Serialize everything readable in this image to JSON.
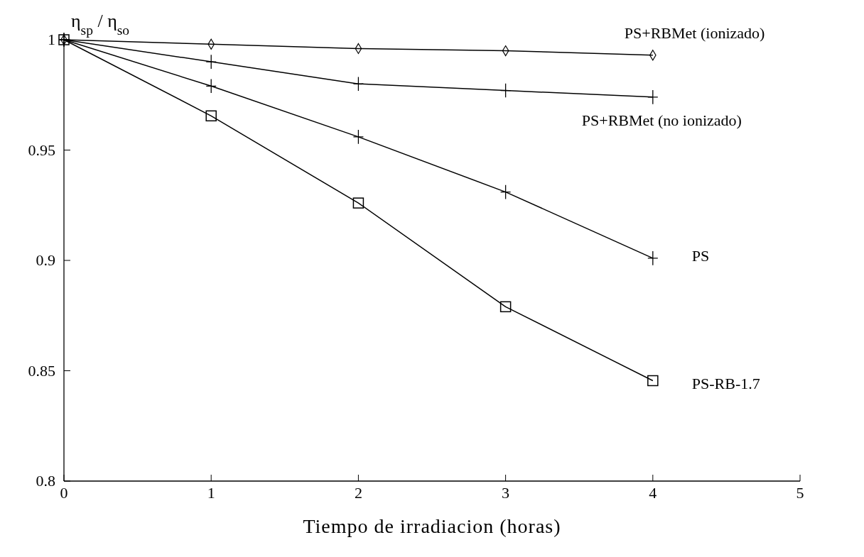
{
  "chart_data": {
    "type": "line",
    "xlabel": "Tiempo de irradiacion (horas)",
    "ylabel": "η$_{sp}$ / η$_{so}$",
    "x": [
      0,
      1,
      2,
      3,
      4
    ],
    "series": [
      {
        "name": "PS+RBMet (ionizado)",
        "color": "#000000",
        "marker": "diamond",
        "values": [
          1,
          0.998,
          0.996,
          0.995,
          0.993
        ]
      },
      {
        "name": "PS+RBMet (no ionizado)",
        "color": "#000000",
        "marker": "cross",
        "values": [
          1,
          0.99,
          0.98,
          0.977,
          0.974
        ]
      },
      {
        "name": "PS",
        "color": "#000000",
        "marker": "cross",
        "values": [
          1,
          0.979,
          0.956,
          0.931,
          0.901
        ]
      },
      {
        "name": "PS-RB-1.7",
        "color": "#000000",
        "marker": "square",
        "values": [
          1,
          0.9655,
          0.926,
          0.879,
          0.8455
        ]
      }
    ],
    "xlim": [
      0,
      5
    ],
    "xticks": [
      0,
      1,
      2,
      3,
      4,
      5
    ],
    "ylim": [
      0.8,
      1
    ],
    "yticks": [
      0.8,
      0.85,
      0.9,
      0.95,
      1
    ],
    "grid": false,
    "legend": false,
    "line_style": "solid"
  }
}
